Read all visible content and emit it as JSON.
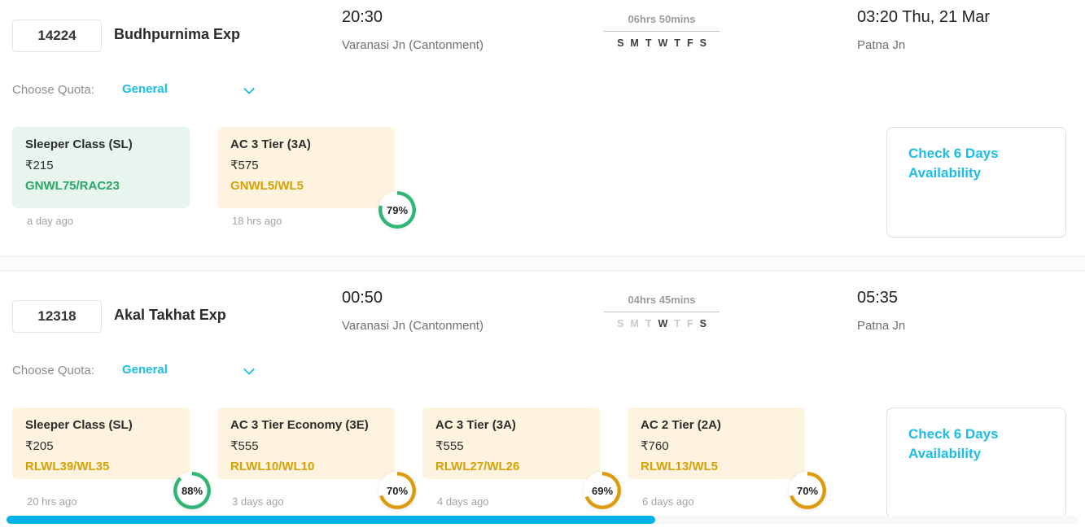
{
  "colors": {
    "accent_cyan": "#1bbde8",
    "green_text": "#27a865",
    "amber_text": "#d7a104",
    "mint_bg": "#e7f5ee",
    "cream_bg": "#fdf3de",
    "scrollbar_blue": "#00b2e8"
  },
  "quota_label": "Choose Quota:",
  "quota_value": "General",
  "check_availability_label": "Check 6 Days Availability",
  "trains": [
    {
      "number": "14224",
      "name": "Budhpurnima Exp",
      "departure_time": "20:30",
      "departure_station": "Varanasi Jn (Cantonment)",
      "duration": "06hrs 50mins",
      "days": [
        {
          "label": "S",
          "active": true
        },
        {
          "label": "M",
          "active": true
        },
        {
          "label": "T",
          "active": true
        },
        {
          "label": "W",
          "active": true
        },
        {
          "label": "T",
          "active": true
        },
        {
          "label": "F",
          "active": true
        },
        {
          "label": "S",
          "active": true
        }
      ],
      "arrival_time": "03:20 Thu, 21 Mar",
      "arrival_station": "Patna Jn",
      "classes": [
        {
          "name": "Sleeper Class (SL)",
          "price": "₹215",
          "status": "GNWL75/RAC23",
          "status_class": "green",
          "bg_class": "mint",
          "updated": "a day ago"
        },
        {
          "name": "AC 3 Tier (3A)",
          "price": "₹575",
          "status": "GNWL5/WL5",
          "status_class": "amber",
          "bg_class": "cream",
          "updated": "18 hrs ago",
          "confirm_pct": 79,
          "confirm_label": "79%",
          "ring_color": "#2fb673"
        }
      ]
    },
    {
      "number": "12318",
      "name": "Akal Takhat Exp",
      "departure_time": "00:50",
      "departure_station": "Varanasi Jn (Cantonment)",
      "duration": "04hrs 45mins",
      "days": [
        {
          "label": "S",
          "active": false
        },
        {
          "label": "M",
          "active": false
        },
        {
          "label": "T",
          "active": false
        },
        {
          "label": "W",
          "active": true
        },
        {
          "label": "T",
          "active": false
        },
        {
          "label": "F",
          "active": false
        },
        {
          "label": "S",
          "active": true
        }
      ],
      "arrival_time": "05:35",
      "arrival_station": "Patna Jn",
      "classes": [
        {
          "name": "Sleeper Class (SL)",
          "price": "₹205",
          "status": "RLWL39/WL35",
          "status_class": "amber",
          "bg_class": "cream",
          "updated": "20 hrs ago",
          "confirm_pct": 88,
          "confirm_label": "88%",
          "ring_color": "#2fb673"
        },
        {
          "name": "AC 3 Tier Economy (3E)",
          "price": "₹555",
          "status": "RLWL10/WL10",
          "status_class": "amber",
          "bg_class": "cream",
          "updated": "3 days ago",
          "confirm_pct": 70,
          "confirm_label": "70%",
          "ring_color": "#dd9b0c"
        },
        {
          "name": "AC 3 Tier (3A)",
          "price": "₹555",
          "status": "RLWL27/WL26",
          "status_class": "amber",
          "bg_class": "cream",
          "updated": "4 days ago",
          "confirm_pct": 69,
          "confirm_label": "69%",
          "ring_color": "#dd9b0c"
        },
        {
          "name": "AC 2 Tier (2A)",
          "price": "₹760",
          "status": "RLWL13/WL5",
          "status_class": "amber",
          "bg_class": "cream",
          "updated": "6 days ago",
          "confirm_pct": 70,
          "confirm_label": "70%",
          "ring_color": "#dd9b0c"
        }
      ]
    }
  ]
}
